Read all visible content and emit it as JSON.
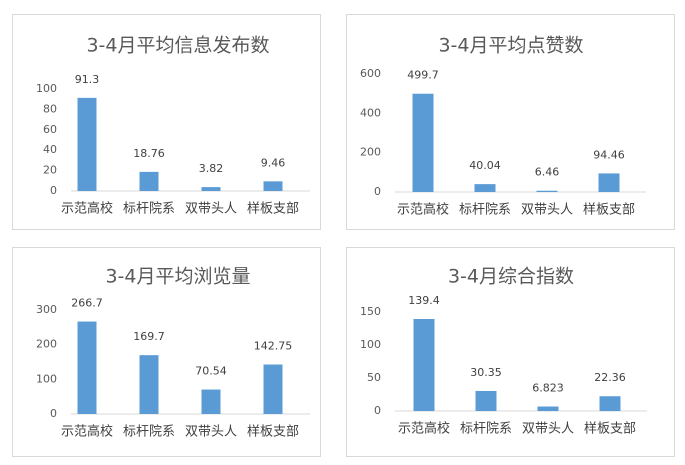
{
  "chart_data": [
    {
      "type": "bar",
      "title": "3-4月平均信息发布数",
      "categories": [
        "示范高校",
        "标杆院系",
        "双带头人",
        "样板支部"
      ],
      "values": [
        91.3,
        18.76,
        3.82,
        9.46
      ],
      "value_labels": [
        "91.3",
        "18.76",
        "3.82",
        "9.46"
      ],
      "yticks": [
        "0",
        "20",
        "40",
        "60",
        "80",
        "100"
      ],
      "ylim": [
        0,
        100
      ],
      "xlabel": "",
      "ylabel": "",
      "grid": false,
      "legend": "none",
      "bar_color": "#5b9bd5"
    },
    {
      "type": "bar",
      "title": "3-4月平均点赞数",
      "categories": [
        "示范高校",
        "标杆院系",
        "双带头人",
        "样板支部"
      ],
      "values": [
        499.7,
        40.04,
        6.46,
        94.46
      ],
      "value_labels": [
        "499.7",
        "40.04",
        "6.46",
        "94.46"
      ],
      "yticks": [
        "0",
        "200",
        "400",
        "600"
      ],
      "ylim": [
        0,
        600
      ],
      "xlabel": "",
      "ylabel": "",
      "grid": false,
      "legend": "none",
      "bar_color": "#5b9bd5"
    },
    {
      "type": "bar",
      "title": "3-4月平均浏览量",
      "categories": [
        "示范高校",
        "标杆院系",
        "双带头人",
        "样板支部"
      ],
      "values": [
        266.7,
        169.7,
        70.54,
        142.75
      ],
      "value_labels": [
        "266.7",
        "169.7",
        "70.54",
        "142.75"
      ],
      "yticks": [
        "0",
        "100",
        "200",
        "300"
      ],
      "ylim": [
        0,
        300
      ],
      "xlabel": "",
      "ylabel": "",
      "grid": false,
      "legend": "none",
      "bar_color": "#5b9bd5"
    },
    {
      "type": "bar",
      "title": "3-4月综合指数",
      "categories": [
        "示范高校",
        "标杆院系",
        "双带头人",
        "样板支部"
      ],
      "values": [
        139.4,
        30.35,
        6.823,
        22.36
      ],
      "value_labels": [
        "139.4",
        "30.35",
        "6.823",
        "22.36"
      ],
      "yticks": [
        "0",
        "50",
        "100",
        "150"
      ],
      "ylim": [
        0,
        150
      ],
      "xlabel": "",
      "ylabel": "",
      "grid": false,
      "legend": "none",
      "bar_color": "#5b9bd5"
    }
  ]
}
